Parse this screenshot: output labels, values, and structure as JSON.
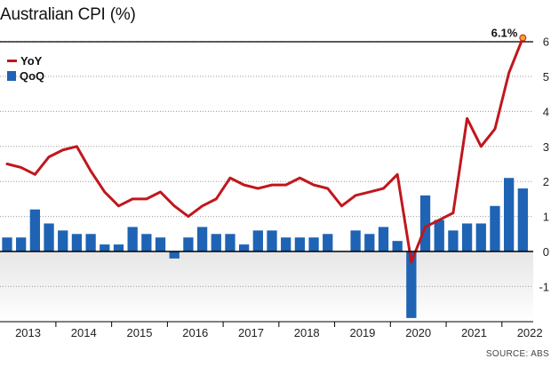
{
  "title": "Australian CPI (%)",
  "source": "SOURCE: ABS",
  "chart_data": {
    "type": "bar+line",
    "title": "Australian CPI (%)",
    "ylim": [
      -1.9,
      6.0
    ],
    "yticks": [
      "6",
      "5",
      "4",
      "3",
      "2",
      "1",
      "0",
      "-1"
    ],
    "year_labels": [
      "2013",
      "2014",
      "2015",
      "2016",
      "2017",
      "2018",
      "2019",
      "2020",
      "2021",
      "2022"
    ],
    "grid": true,
    "legend": "top-left",
    "series": [
      {
        "name": "QoQ",
        "kind": "bar",
        "color": "#1f63b4",
        "values": [
          0.4,
          0.4,
          1.2,
          0.8,
          0.6,
          0.5,
          0.5,
          0.2,
          0.2,
          0.7,
          0.5,
          0.4,
          -0.2,
          0.4,
          0.7,
          0.5,
          0.5,
          0.2,
          0.6,
          0.6,
          0.4,
          0.4,
          0.4,
          0.5,
          0.0,
          0.6,
          0.5,
          0.7,
          0.3,
          -1.9,
          1.6,
          0.9,
          0.6,
          0.8,
          0.8,
          1.3,
          2.1,
          1.8
        ]
      },
      {
        "name": "YoY",
        "kind": "line",
        "color": "#c0171d",
        "values": [
          2.5,
          2.4,
          2.2,
          2.7,
          2.9,
          3.0,
          2.3,
          1.7,
          1.3,
          1.5,
          1.5,
          1.7,
          1.3,
          1.0,
          1.3,
          1.5,
          2.1,
          1.9,
          1.8,
          1.9,
          1.9,
          2.1,
          1.9,
          1.8,
          1.3,
          1.6,
          1.7,
          1.8,
          2.2,
          -0.3,
          0.7,
          0.9,
          1.1,
          3.8,
          3.0,
          3.5,
          5.1,
          6.1
        ]
      }
    ],
    "annotation": {
      "label": "6.1%",
      "value": 6.1
    }
  },
  "legend": {
    "yoy_label": "YoY",
    "qoq_label": "QoQ"
  }
}
